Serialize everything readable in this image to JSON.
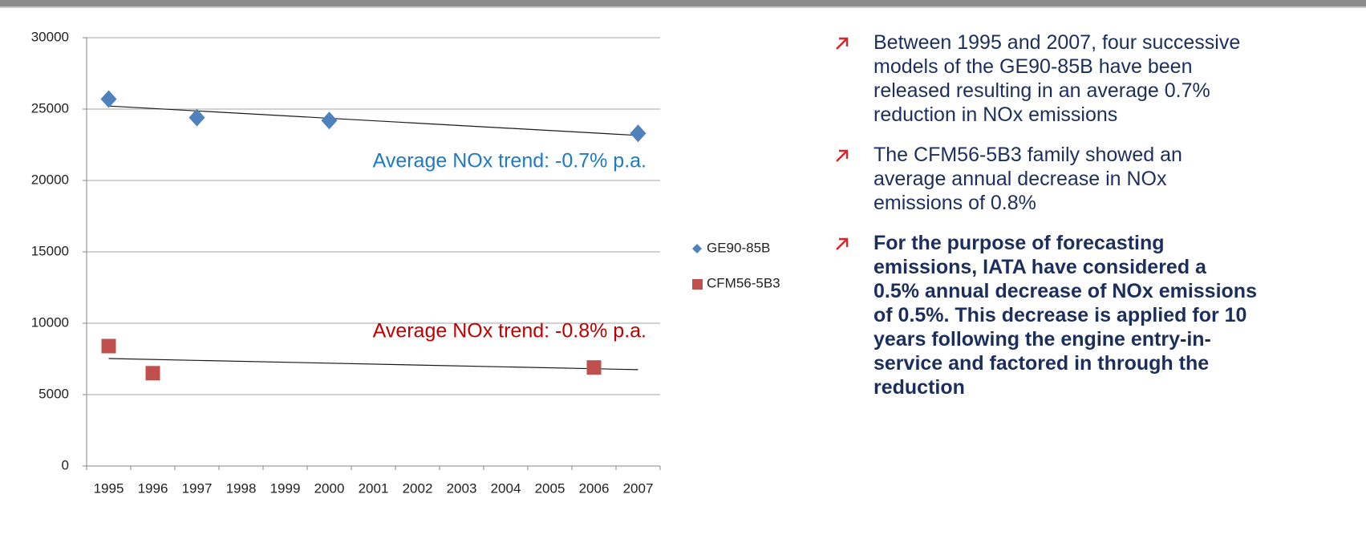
{
  "chart_data": {
    "type": "scatter",
    "categories": [
      "1995",
      "1996",
      "1997",
      "1998",
      "1999",
      "2000",
      "2001",
      "2002",
      "2003",
      "2004",
      "2005",
      "2006",
      "2007"
    ],
    "series": [
      {
        "name": "GE90-85B",
        "color": "#4f81bd",
        "marker": "diamond",
        "values": [
          25700,
          null,
          24400,
          null,
          null,
          24200,
          null,
          null,
          null,
          null,
          null,
          null,
          23300
        ]
      },
      {
        "name": "CFM56-5B3",
        "color": "#c0504d",
        "marker": "square",
        "values": [
          8400,
          6500,
          null,
          null,
          null,
          null,
          null,
          null,
          null,
          null,
          null,
          6900,
          null
        ]
      }
    ],
    "ylim": [
      0,
      30000
    ],
    "yticks": [
      0,
      5000,
      10000,
      15000,
      20000,
      25000,
      30000
    ],
    "grid": true,
    "trendline": true,
    "legend": "right",
    "annotations": [
      {
        "text": "Average NOx trend: -0.7% p.a.",
        "color": "#1f7ac3",
        "series": 0
      },
      {
        "text": "Average NOx trend: -0.8% p.a.",
        "color": "#c00000",
        "series": 1
      }
    ]
  },
  "bullets": [
    {
      "text": "Between 1995 and 2007, four successive models of the GE90-85B have been released resulting in an average 0.7% reduction in NOx emissions",
      "bold": false
    },
    {
      "text": "The CFM56-5B3 family showed an average annual decrease in NOx emissions of 0.8%",
      "bold": false
    },
    {
      "text": "For the purpose of forecasting emissions, IATA have considered a 0.5% annual decrease of NOx emissions of 0.5%. This decrease is applied for 10 years following the engine entry-in-service and factored in through the reduction",
      "bold": true
    }
  ]
}
